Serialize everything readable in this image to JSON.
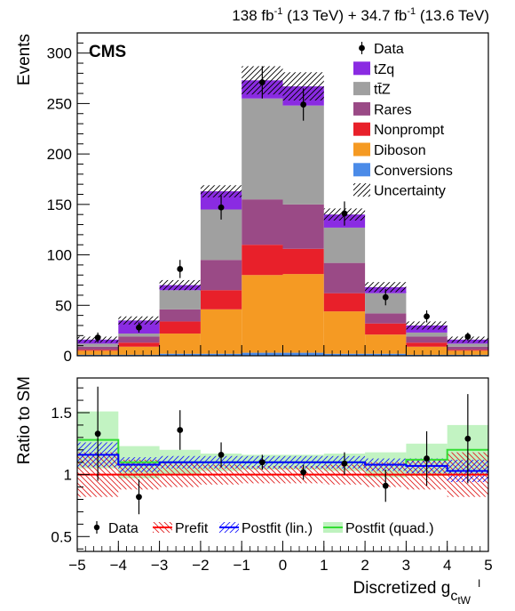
{
  "header": {
    "lumi_a": "138 fb",
    "lumi_a_sup": "-1",
    "lumi_a_energy": " (13 TeV) + 34.7 fb",
    "lumi_b_sup": "-1",
    "lumi_b_energy": " (13.6 TeV)",
    "experiment": "CMS"
  },
  "colors": {
    "tZq": "#8a2be2",
    "ttZ": "#a0a0a0",
    "Rares": "#9a4a86",
    "Nonprompt": "#e8202a",
    "Diboson": "#f59a23",
    "Conversions": "#4b8be8",
    "prefit": "#ff0000",
    "postfit_lin": "#0000ff",
    "postfit_quad": "#33dd33"
  },
  "chart_data": [
    {
      "type": "bar",
      "stacked": true,
      "xlabel": "",
      "ylabel": "Events",
      "xlim": [
        -5,
        5
      ],
      "ylim": [
        0,
        320
      ],
      "yticks": [
        0,
        50,
        100,
        150,
        200,
        250,
        300
      ],
      "bin_edges": [
        -5,
        -4,
        -3,
        -2,
        -1,
        0,
        1,
        2,
        3,
        4,
        5
      ],
      "series": [
        {
          "name": "Conversions",
          "values": [
            1,
            1,
            2,
            2,
            3,
            3,
            2,
            2,
            1,
            1
          ]
        },
        {
          "name": "Diboson",
          "values": [
            4,
            8,
            20,
            44,
            77,
            78,
            42,
            19,
            8,
            4
          ]
        },
        {
          "name": "Nonprompt",
          "values": [
            1,
            4,
            12,
            19,
            30,
            25,
            18,
            11,
            4,
            1
          ]
        },
        {
          "name": "Rares",
          "values": [
            3,
            6,
            12,
            30,
            45,
            44,
            30,
            10,
            6,
            3
          ]
        },
        {
          "name": "tt̄Z",
          "values": [
            3,
            3,
            19,
            50,
            100,
            98,
            35,
            20,
            4,
            3
          ]
        },
        {
          "name": "tZq",
          "values": [
            4,
            13,
            5,
            18,
            18,
            19,
            13,
            6,
            7,
            4
          ]
        }
      ],
      "data_points": [
        {
          "x": -4.5,
          "y": 18,
          "err": 5
        },
        {
          "x": -3.5,
          "y": 28,
          "err": 5
        },
        {
          "x": -2.5,
          "y": 86,
          "err": 9
        },
        {
          "x": -1.5,
          "y": 147,
          "err": 12
        },
        {
          "x": -0.5,
          "y": 271,
          "err": 16
        },
        {
          "x": 0.5,
          "y": 249,
          "err": 16
        },
        {
          "x": 1.5,
          "y": 141,
          "err": 12
        },
        {
          "x": 2.5,
          "y": 58,
          "err": 8
        },
        {
          "x": 3.5,
          "y": 39,
          "err": 6
        },
        {
          "x": 4.5,
          "y": 19,
          "err": 4
        }
      ],
      "uncertainty": [
        3,
        4,
        5,
        6,
        14,
        14,
        6,
        5,
        4,
        3
      ],
      "legend": {
        "placement": "top-right",
        "entries": [
          "Data",
          "tZq",
          "tt̄Z",
          "Rares",
          "Nonprompt",
          "Diboson",
          "Conversions",
          "Uncertainty"
        ]
      }
    },
    {
      "type": "line",
      "xlabel": "Discretized g",
      "xlabel_sub": "c",
      "xlabel_subsub": "tW",
      "xlabel_supsup": "I",
      "ylabel": "Ratio to SM",
      "xlim": [
        -5,
        5
      ],
      "ylim": [
        0.38,
        1.78
      ],
      "xticks": [
        -5,
        -4,
        -3,
        -2,
        -1,
        0,
        1,
        2,
        3,
        4,
        5
      ],
      "yticks": [
        0.5,
        1,
        1.5
      ],
      "ytick_labels": [
        "0.5",
        "1",
        "1.5"
      ],
      "bin_edges": [
        -5,
        -4,
        -3,
        -2,
        -1,
        0,
        1,
        2,
        3,
        4,
        5
      ],
      "data_points": [
        {
          "x": -4.5,
          "y": 1.33,
          "err": 0.38
        },
        {
          "x": -3.5,
          "y": 0.82,
          "err": 0.14
        },
        {
          "x": -2.5,
          "y": 1.36,
          "err": 0.16
        },
        {
          "x": -1.5,
          "y": 1.16,
          "err": 0.1
        },
        {
          "x": -0.5,
          "y": 1.1,
          "err": 0.06
        },
        {
          "x": 0.5,
          "y": 1.02,
          "err": 0.06
        },
        {
          "x": 1.5,
          "y": 1.09,
          "err": 0.09
        },
        {
          "x": 2.5,
          "y": 0.91,
          "err": 0.13
        },
        {
          "x": 3.5,
          "y": 1.13,
          "err": 0.22
        },
        {
          "x": 4.5,
          "y": 1.29,
          "err": 0.36
        }
      ],
      "series": [
        {
          "name": "Prefit",
          "values": [
            1,
            1,
            1,
            1,
            1,
            1,
            1,
            1,
            1,
            1
          ],
          "band": [
            0.18,
            0.12,
            0.1,
            0.08,
            0.07,
            0.07,
            0.08,
            0.1,
            0.12,
            0.18
          ]
        },
        {
          "name": "Postfit (lin.)",
          "values": [
            1.16,
            1.08,
            1.1,
            1.1,
            1.1,
            1.1,
            1.1,
            1.08,
            1.07,
            1.03
          ],
          "band": [
            0.1,
            0.06,
            0.05,
            0.05,
            0.05,
            0.05,
            0.05,
            0.05,
            0.06,
            0.09
          ]
        },
        {
          "name": "Postfit (quad.)",
          "values": [
            1.28,
            1.1,
            1.1,
            1.1,
            1.1,
            1.1,
            1.1,
            1.08,
            1.12,
            1.2
          ],
          "band": [
            0.23,
            0.13,
            0.1,
            0.07,
            0.06,
            0.06,
            0.07,
            0.1,
            0.13,
            0.2
          ]
        }
      ],
      "legend": {
        "placement": "bottom",
        "entries": [
          "Data",
          "Prefit",
          "Postfit (lin.)",
          "Postfit (quad.)"
        ]
      }
    }
  ]
}
